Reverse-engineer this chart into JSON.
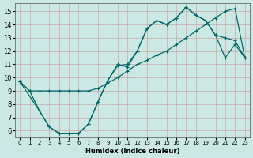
{
  "xlabel": "Humidex (Indice chaleur)",
  "bg_color": "#cce8e4",
  "grid_color": "#c8a8a8",
  "line_color": "#006868",
  "xlim": [
    -0.5,
    23.5
  ],
  "ylim": [
    5.5,
    15.6
  ],
  "xticks": [
    0,
    1,
    2,
    3,
    4,
    5,
    6,
    7,
    8,
    9,
    10,
    11,
    12,
    13,
    14,
    15,
    16,
    17,
    18,
    19,
    20,
    21,
    22,
    23
  ],
  "yticks": [
    6,
    7,
    8,
    9,
    10,
    11,
    12,
    13,
    14,
    15
  ],
  "line1_x": [
    0,
    1,
    2,
    3,
    4,
    5,
    6,
    7,
    8,
    9,
    10,
    11,
    12,
    13,
    14,
    15,
    16,
    17,
    18,
    19,
    20,
    21,
    22,
    23
  ],
  "line1_y": [
    9.7,
    9.0,
    9.0,
    9.0,
    9.0,
    9.0,
    9.0,
    9.0,
    9.2,
    9.6,
    10.0,
    10.5,
    11.0,
    11.3,
    11.7,
    12.0,
    12.5,
    13.0,
    13.5,
    14.0,
    14.5,
    15.0,
    15.2,
    11.5
  ],
  "line2_x": [
    0,
    1,
    2,
    3,
    4,
    5,
    6,
    7,
    8,
    9,
    10,
    11,
    12,
    13,
    14,
    15,
    16,
    17,
    18,
    19,
    20,
    21,
    22,
    23
  ],
  "line2_y": [
    9.7,
    9.0,
    7.5,
    6.3,
    5.8,
    5.8,
    5.8,
    6.5,
    8.2,
    9.8,
    10.9,
    11.0,
    12.0,
    13.7,
    14.3,
    14.0,
    14.5,
    15.3,
    14.7,
    14.3,
    13.2,
    13.0,
    12.8,
    11.5
  ],
  "line3_x": [
    0,
    2,
    3,
    4,
    5,
    6,
    7,
    8,
    9,
    10,
    11,
    12,
    13,
    14,
    15,
    16,
    17,
    18,
    19,
    20,
    21,
    22,
    23
  ],
  "line3_y": [
    9.7,
    7.5,
    6.3,
    5.8,
    5.8,
    5.8,
    6.5,
    8.2,
    9.8,
    11.0,
    10.8,
    12.0,
    13.7,
    14.3,
    14.0,
    14.5,
    15.3,
    14.7,
    14.3,
    13.2,
    11.5,
    12.5,
    11.5
  ]
}
